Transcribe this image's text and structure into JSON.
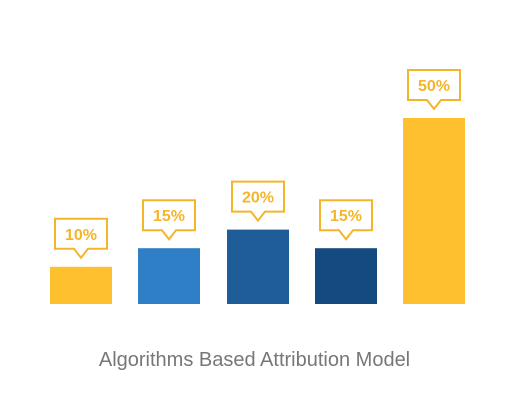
{
  "chart_data": {
    "type": "bar",
    "title": "Algorithms Based Attribution Model",
    "values": [
      10,
      15,
      20,
      15,
      50
    ],
    "data_labels": [
      "10%",
      "15%",
      "20%",
      "15%",
      "50%"
    ],
    "colors": [
      "#fec02f",
      "#2e7fc6",
      "#1f5d98",
      "#134a7f",
      "#fec02f"
    ],
    "callout_color": "#f5b52a",
    "ylim": [
      0,
      50
    ],
    "grid": false,
    "legend": "none"
  }
}
